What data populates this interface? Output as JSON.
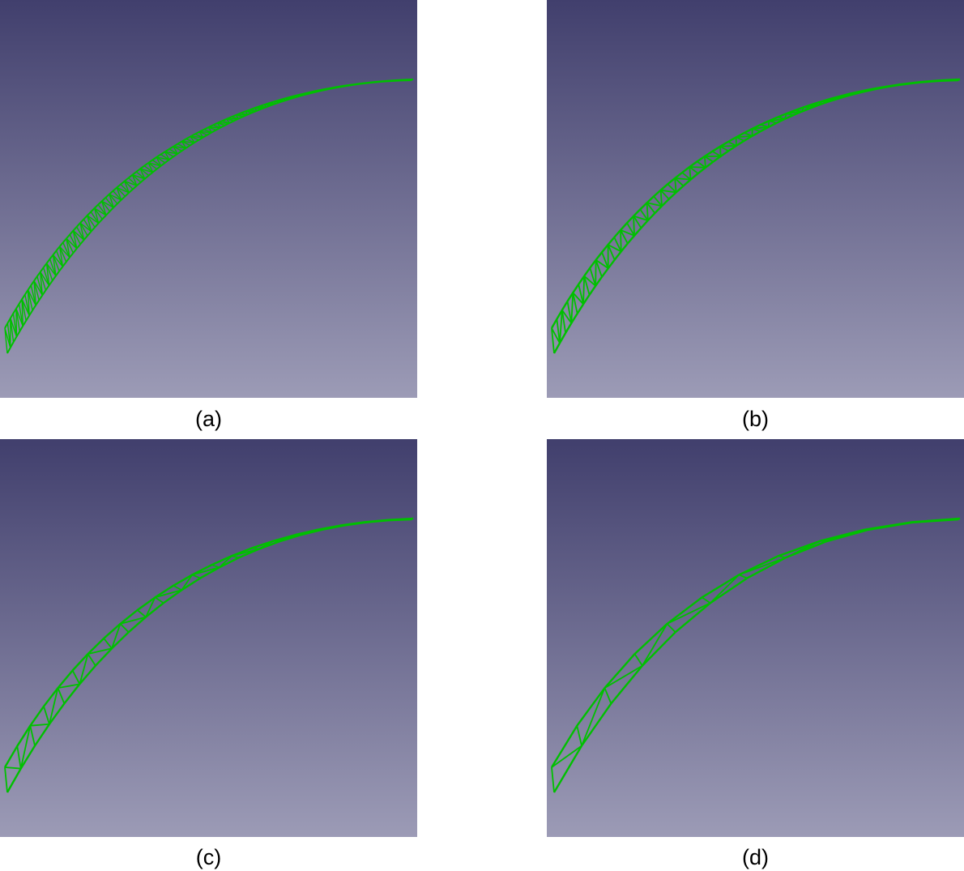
{
  "panels": [
    {
      "id": "a",
      "label": "(a)",
      "segments": 96
    },
    {
      "id": "b",
      "label": "(b)",
      "segments": 52
    },
    {
      "id": "c",
      "label": "(c)",
      "segments": 22
    },
    {
      "id": "d",
      "label": "(d)",
      "segments": 11
    }
  ],
  "colors": {
    "background_top": "#413f6d",
    "background_bottom": "#9c9bb6",
    "truss": "#00c000"
  }
}
